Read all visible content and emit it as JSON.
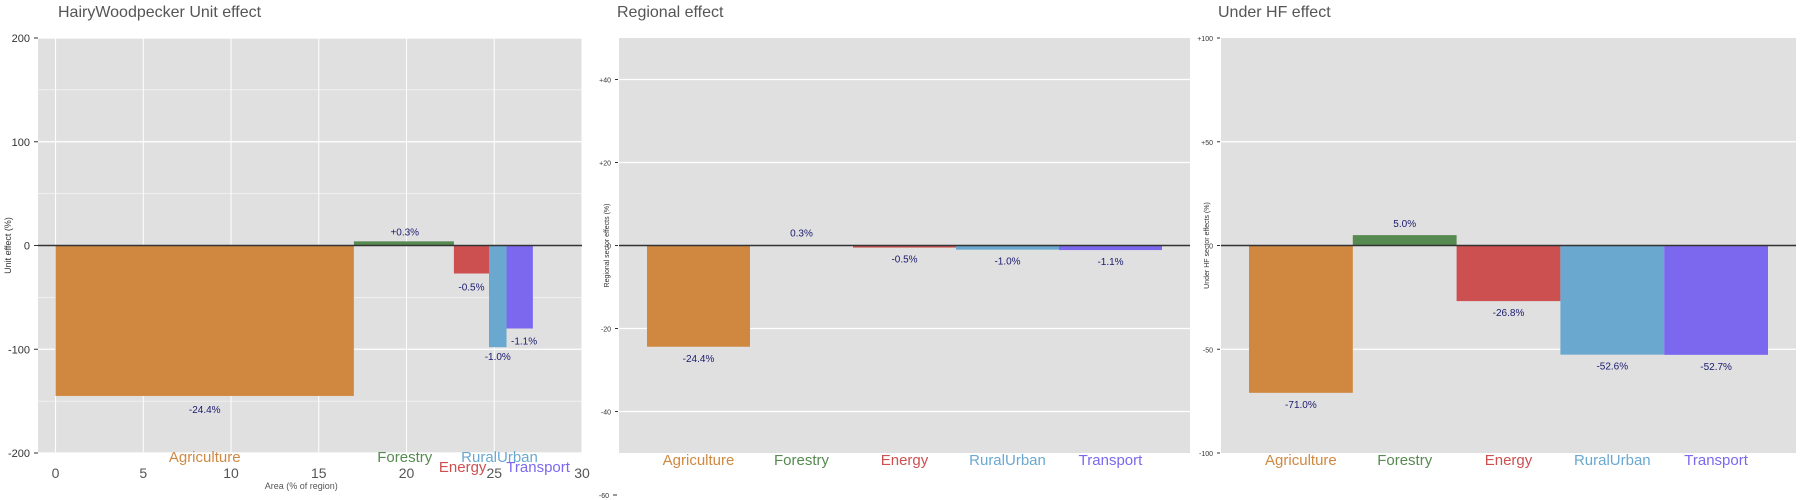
{
  "colors": {
    "Agriculture": "#d08840",
    "Forestry": "#568a50",
    "Energy": "#cc5050",
    "RuralUrban": "#6aa8d0",
    "Transport": "#7b68ee",
    "plot_bg": "#e0e0e0",
    "grid": "#ffffff",
    "zero_line": "#333333",
    "value_label": "#1a1a6e"
  },
  "chart_data": [
    {
      "type": "bar",
      "title": "HairyWoodpecker Unit effect",
      "xlabel": "Area (% of region)",
      "ylabel": "Unit effect (%)",
      "xlim": [
        -1,
        30
      ],
      "ylim": [
        -200,
        200
      ],
      "xticks": [
        "0",
        "5",
        "10",
        "15",
        "20",
        "25",
        "30"
      ],
      "yticks": [
        "-200",
        "-100",
        "0",
        "100",
        "200"
      ],
      "bars": [
        {
          "sector": "Agriculture",
          "x_start": 0,
          "x_end": 17,
          "value": -145,
          "label": "-24.4%"
        },
        {
          "sector": "Forestry",
          "x_start": 17,
          "x_end": 22.7,
          "value": 4,
          "label": "+0.3%"
        },
        {
          "sector": "Energy",
          "x_start": 22.7,
          "x_end": 24.7,
          "value": -27,
          "label": "-0.5%"
        },
        {
          "sector": "RuralUrban",
          "x_start": 24.7,
          "x_end": 25.7,
          "value": -98,
          "label": "-1.0%"
        },
        {
          "sector": "Transport",
          "x_start": 25.7,
          "x_end": 27.2,
          "value": -80,
          "label": "-1.1%"
        }
      ],
      "category_labels": [
        "Agriculture",
        "Forestry",
        "Energy",
        "RuralUrban",
        "Transport"
      ]
    },
    {
      "type": "bar",
      "title": "Regional effect",
      "ylabel": "Regional sector effects (%)",
      "ylim": [
        -50,
        50
      ],
      "yticks": [
        "+40",
        "+20",
        "0",
        "-20",
        "-40",
        "-60"
      ],
      "categories": [
        "Agriculture",
        "Forestry",
        "Energy",
        "RuralUrban",
        "Transport"
      ],
      "values": [
        -24.4,
        0.3,
        -0.5,
        -1.0,
        -1.1
      ],
      "labels": [
        "-24.4%",
        "0.3%",
        "-0.5%",
        "-1.0%",
        "-1.1%"
      ]
    },
    {
      "type": "bar",
      "title": "Under HF effect",
      "ylabel": "Under HF sector effects (%)",
      "ylim": [
        -100,
        100
      ],
      "yticks": [
        "+100",
        "+50",
        "0",
        "-50",
        "-100"
      ],
      "categories": [
        "Agriculture",
        "Forestry",
        "Energy",
        "RuralUrban",
        "Transport"
      ],
      "values": [
        -71.0,
        5.0,
        -26.8,
        -52.6,
        -52.7
      ],
      "labels": [
        "-71.0%",
        "5.0%",
        "-26.8%",
        "-52.6%",
        "-52.7%"
      ]
    }
  ]
}
